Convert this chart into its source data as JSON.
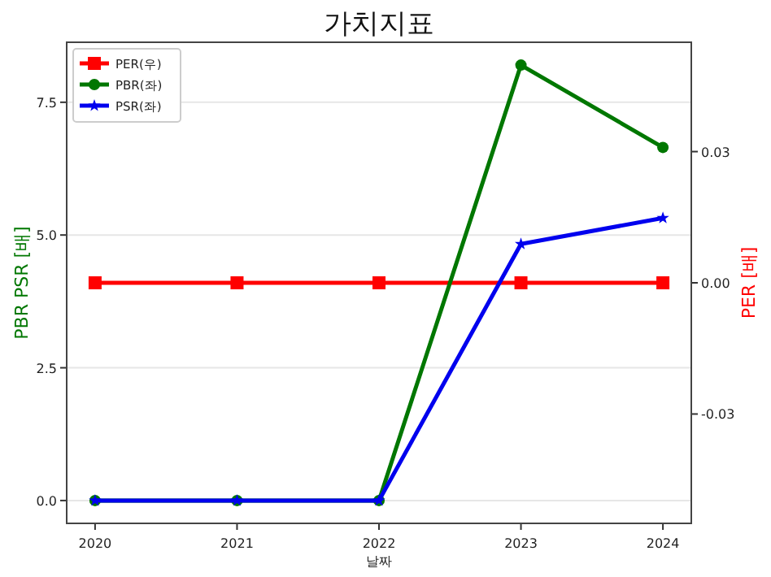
{
  "chart_data": {
    "type": "line",
    "title": "가치지표",
    "xlabel": "날짜",
    "ylabel": "PBR PSR [배]",
    "y2label": "PER [배]",
    "x": [
      2020,
      2021,
      2022,
      2023,
      2024
    ],
    "xlim": [
      2019.8,
      2024.2
    ],
    "xticks": [
      2020,
      2021,
      2022,
      2023,
      2024
    ],
    "ylim": [
      -0.43,
      8.63
    ],
    "yticks": [
      {
        "value": 0,
        "label": "0.0"
      },
      2.5,
      {
        "value": 5,
        "label": "5.0"
      },
      7.5
    ],
    "y2lim": [
      -0.055,
      0.055
    ],
    "y2ticks": [
      {
        "value": -0.03,
        "label": "-0.03"
      },
      {
        "value": 0,
        "label": "0.00"
      },
      0.03
    ],
    "grid": "y",
    "legend": "top left",
    "line_style": "solid",
    "series": [
      {
        "name": "PER(우)",
        "color": "#ff0000",
        "axis": "y2",
        "marker": "square",
        "values": [
          0,
          0,
          0,
          0,
          0
        ]
      },
      {
        "name": "PBR(좌)",
        "color": "#007700",
        "marker": "circle",
        "values": [
          0,
          0,
          0,
          8.2,
          6.65
        ]
      },
      {
        "name": "PSR(좌)",
        "color": "#0000ee",
        "marker": "star",
        "values": [
          0,
          0,
          0,
          4.83,
          5.32
        ]
      }
    ]
  }
}
